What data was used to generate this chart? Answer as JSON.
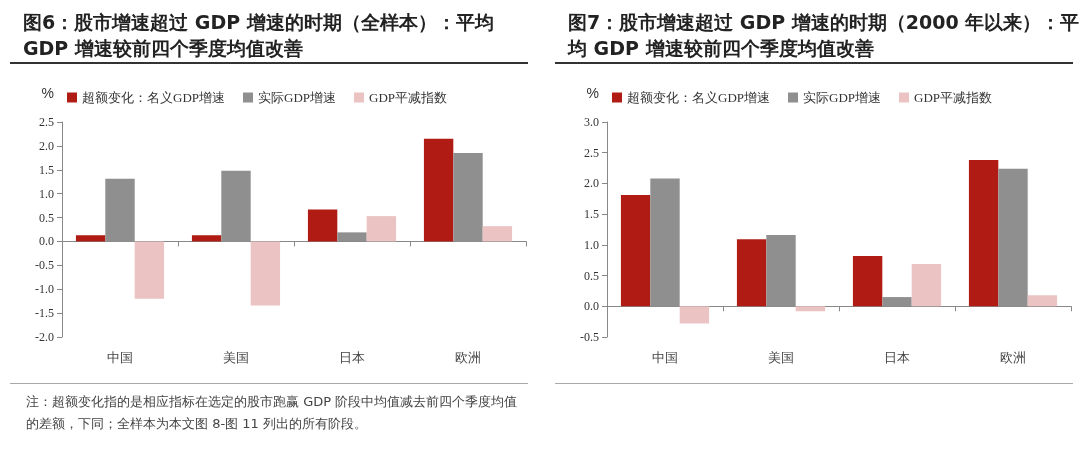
{
  "chart_data": [
    {
      "type": "bar",
      "title": "图6：股市增速超过 GDP 增速的时期（全样本）：平均 GDP 增速较前四个季度均值改善",
      "ylabel": "%",
      "categories": [
        "中国",
        "美国",
        "日本",
        "欧洲"
      ],
      "series": [
        {
          "name": "超额变化：名义GDP增速",
          "color": "#b01c14",
          "values": [
            0.13,
            0.13,
            0.67,
            2.15
          ]
        },
        {
          "name": "实际GDP增速",
          "color": "#8f8f8f",
          "values": [
            1.31,
            1.48,
            0.19,
            1.85
          ]
        },
        {
          "name": "GDP平减指数",
          "color": "#ebc3c3",
          "values": [
            -1.2,
            -1.34,
            0.53,
            0.32
          ]
        }
      ],
      "ylim": [
        -2,
        2.5
      ],
      "yticks": [
        {
          "value": -2,
          "label": "-2.0"
        },
        {
          "value": -1.5,
          "label": "-1.5"
        },
        {
          "value": -1,
          "label": "-1.0"
        },
        {
          "value": -0.5,
          "label": "-0.5"
        },
        {
          "value": 0,
          "label": "0.0"
        },
        {
          "value": 0.5,
          "label": "0.5"
        },
        {
          "value": 1,
          "label": "1.0"
        },
        {
          "value": 1.5,
          "label": "1.5"
        },
        {
          "value": 2,
          "label": "2.0"
        },
        {
          "value": 2.5,
          "label": "2.5"
        }
      ],
      "legend": "top",
      "annotations": [
        "注：超额变化指的是相应指标在选定的股市跑赢 GDP 阶段中均值减去前四个季度均值的差额，下同；全样本为本文图 8-图 11 列出的所有阶段。"
      ]
    },
    {
      "type": "bar",
      "title": "图7：股市增速超过 GDP 增速的时期（2000 年以来）：平均 GDP 增速较前四个季度均值改善",
      "ylabel": "%",
      "categories": [
        "中国",
        "美国",
        "日本",
        "欧洲"
      ],
      "series": [
        {
          "name": "超额变化：名义GDP增速",
          "color": "#b01c14",
          "values": [
            1.81,
            1.09,
            0.82,
            2.38
          ]
        },
        {
          "name": "实际GDP增速",
          "color": "#8f8f8f",
          "values": [
            2.08,
            1.16,
            0.15,
            2.24
          ]
        },
        {
          "name": "GDP平减指数",
          "color": "#ebc3c3",
          "values": [
            -0.28,
            -0.08,
            0.69,
            0.18
          ]
        }
      ],
      "ylim": [
        -0.5,
        3
      ],
      "yticks": [
        {
          "value": -0.5,
          "label": "-0.5"
        },
        {
          "value": 0,
          "label": "0.0"
        },
        {
          "value": 0.5,
          "label": "0.5"
        },
        {
          "value": 1,
          "label": "1.0"
        },
        {
          "value": 1.5,
          "label": "1.5"
        },
        {
          "value": 2,
          "label": "2.0"
        },
        {
          "value": 2.5,
          "label": "2.5"
        },
        {
          "value": 3,
          "label": "3.0"
        }
      ],
      "legend": "top"
    }
  ]
}
